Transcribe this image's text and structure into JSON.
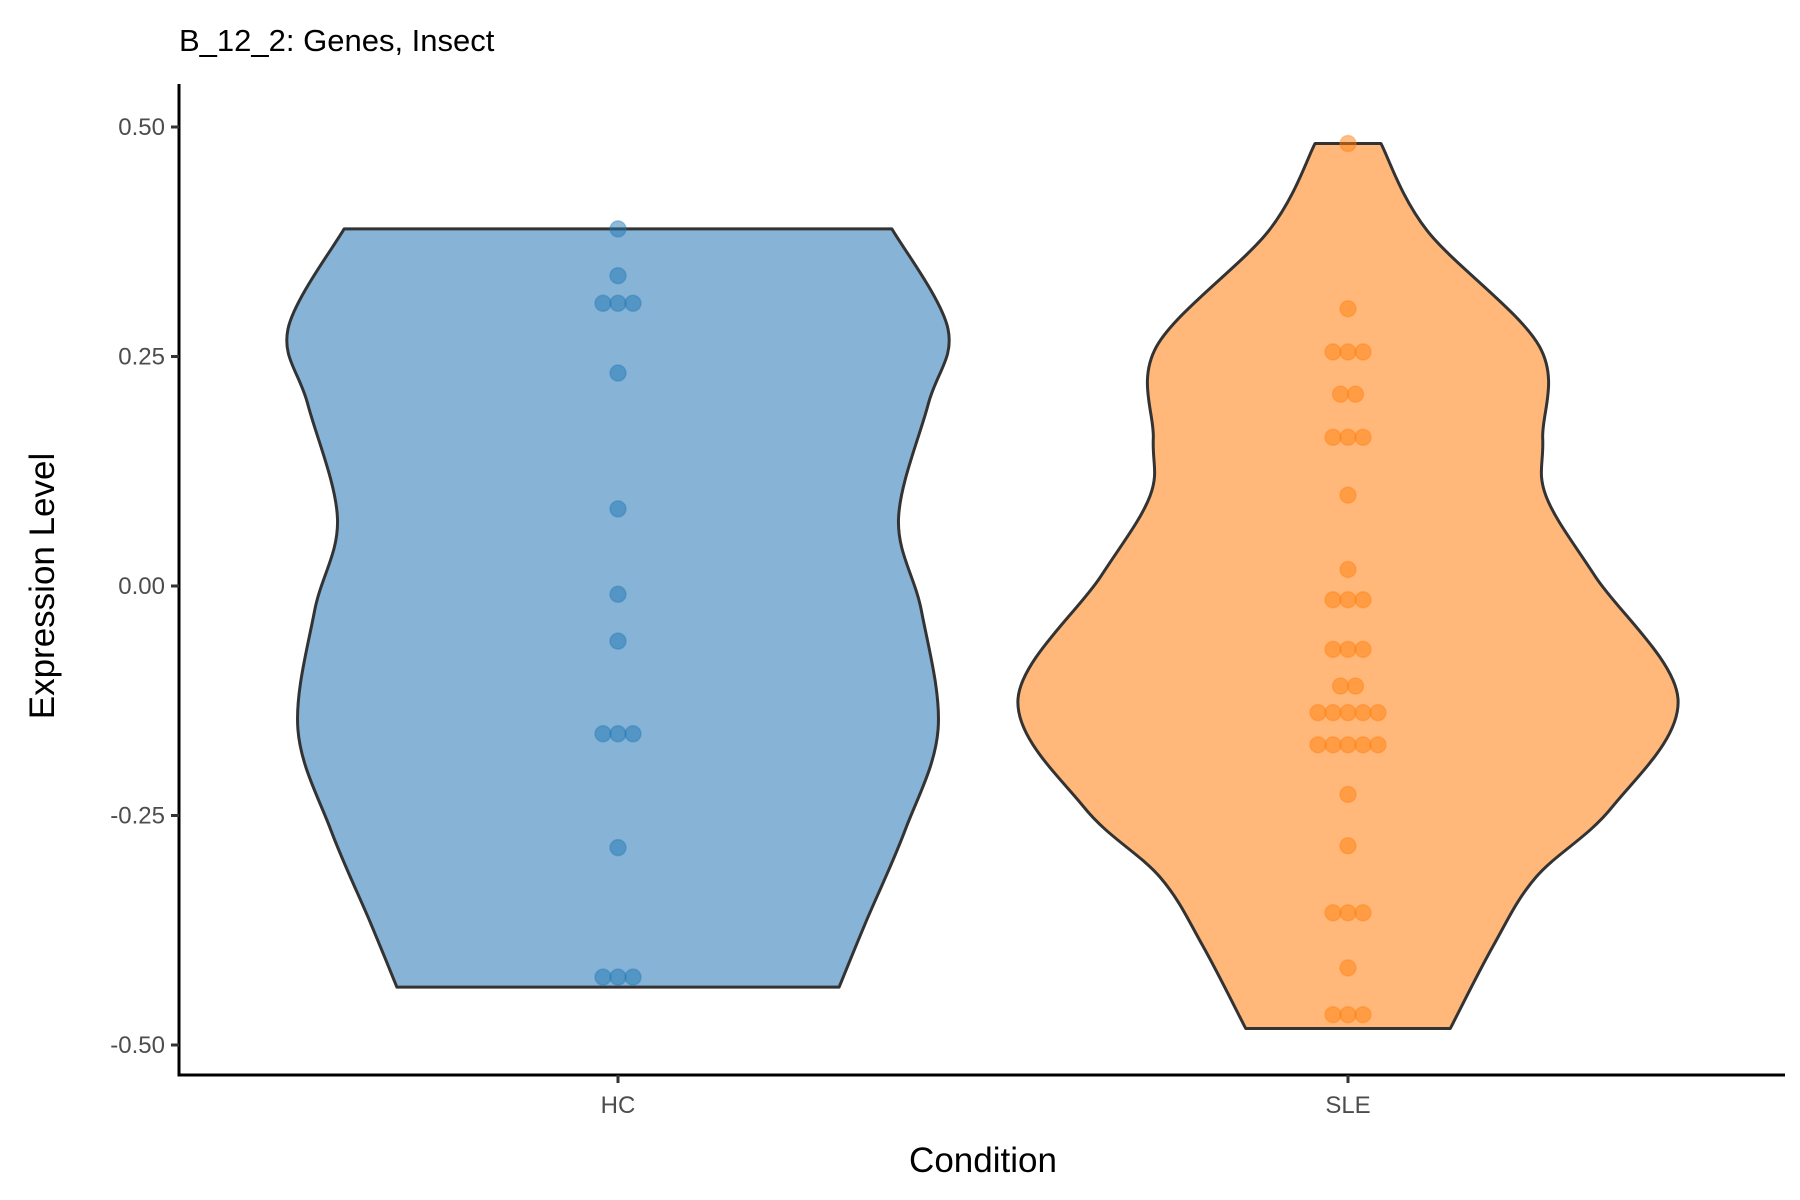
{
  "chart_data": {
    "type": "violin",
    "title": "B_12_2: Genes, Insect",
    "xlabel": "Condition",
    "ylabel": "Expression Level",
    "ylim": [
      -0.53,
      0.55
    ],
    "yticks": [
      0.5,
      0.25,
      0.0,
      -0.25,
      -0.5
    ],
    "ytick_labels": [
      "0.50",
      "0.25",
      "0.00",
      "-0.25",
      "-0.50"
    ],
    "categories": [
      "HC",
      "SLE"
    ],
    "grid": false,
    "series": [
      {
        "name": "HC",
        "fill": "#86b3d6",
        "point_color": "#1f77b4",
        "range": [
          -0.437,
          0.389
        ],
        "density_profile": [
          [
            0.389,
            0.83
          ],
          [
            0.28,
            1.0
          ],
          [
            0.198,
            0.94
          ],
          [
            0.073,
            0.85
          ],
          [
            -0.028,
            0.92
          ],
          [
            -0.156,
            0.97
          ],
          [
            -0.266,
            0.87
          ],
          [
            -0.367,
            0.75
          ],
          [
            -0.437,
            0.67
          ]
        ],
        "points": [
          {
            "y": 0.389,
            "n": 1
          },
          {
            "y": 0.338,
            "n": 1
          },
          {
            "y": 0.308,
            "n": 3
          },
          {
            "y": 0.232,
            "n": 1
          },
          {
            "y": 0.084,
            "n": 1
          },
          {
            "y": -0.009,
            "n": 1
          },
          {
            "y": -0.06,
            "n": 1
          },
          {
            "y": -0.161,
            "n": 3
          },
          {
            "y": -0.285,
            "n": 1
          },
          {
            "y": -0.426,
            "n": 3
          }
        ]
      },
      {
        "name": "SLE",
        "fill": "#ffb87a",
        "point_color": "#ff7f0e",
        "range": [
          -0.482,
          0.482
        ],
        "density_profile": [
          [
            0.482,
            0.1
          ],
          [
            0.387,
            0.24
          ],
          [
            0.261,
            0.58
          ],
          [
            0.161,
            0.59
          ],
          [
            0.098,
            0.6
          ],
          [
            0.01,
            0.75
          ],
          [
            -0.123,
            1.0
          ],
          [
            -0.241,
            0.8
          ],
          [
            -0.317,
            0.57
          ],
          [
            -0.392,
            0.44
          ],
          [
            -0.482,
            0.31
          ]
        ],
        "points": [
          {
            "y": 0.482,
            "n": 1
          },
          {
            "y": 0.302,
            "n": 1
          },
          {
            "y": 0.255,
            "n": 3
          },
          {
            "y": 0.209,
            "n": 2
          },
          {
            "y": 0.162,
            "n": 3
          },
          {
            "y": 0.099,
            "n": 1
          },
          {
            "y": 0.018,
            "n": 1
          },
          {
            "y": -0.015,
            "n": 3
          },
          {
            "y": -0.069,
            "n": 3
          },
          {
            "y": -0.109,
            "n": 2
          },
          {
            "y": -0.138,
            "n": 5
          },
          {
            "y": -0.173,
            "n": 5
          },
          {
            "y": -0.227,
            "n": 1
          },
          {
            "y": -0.283,
            "n": 1
          },
          {
            "y": -0.356,
            "n": 3
          },
          {
            "y": -0.416,
            "n": 1
          },
          {
            "y": -0.467,
            "n": 3
          }
        ]
      }
    ]
  }
}
